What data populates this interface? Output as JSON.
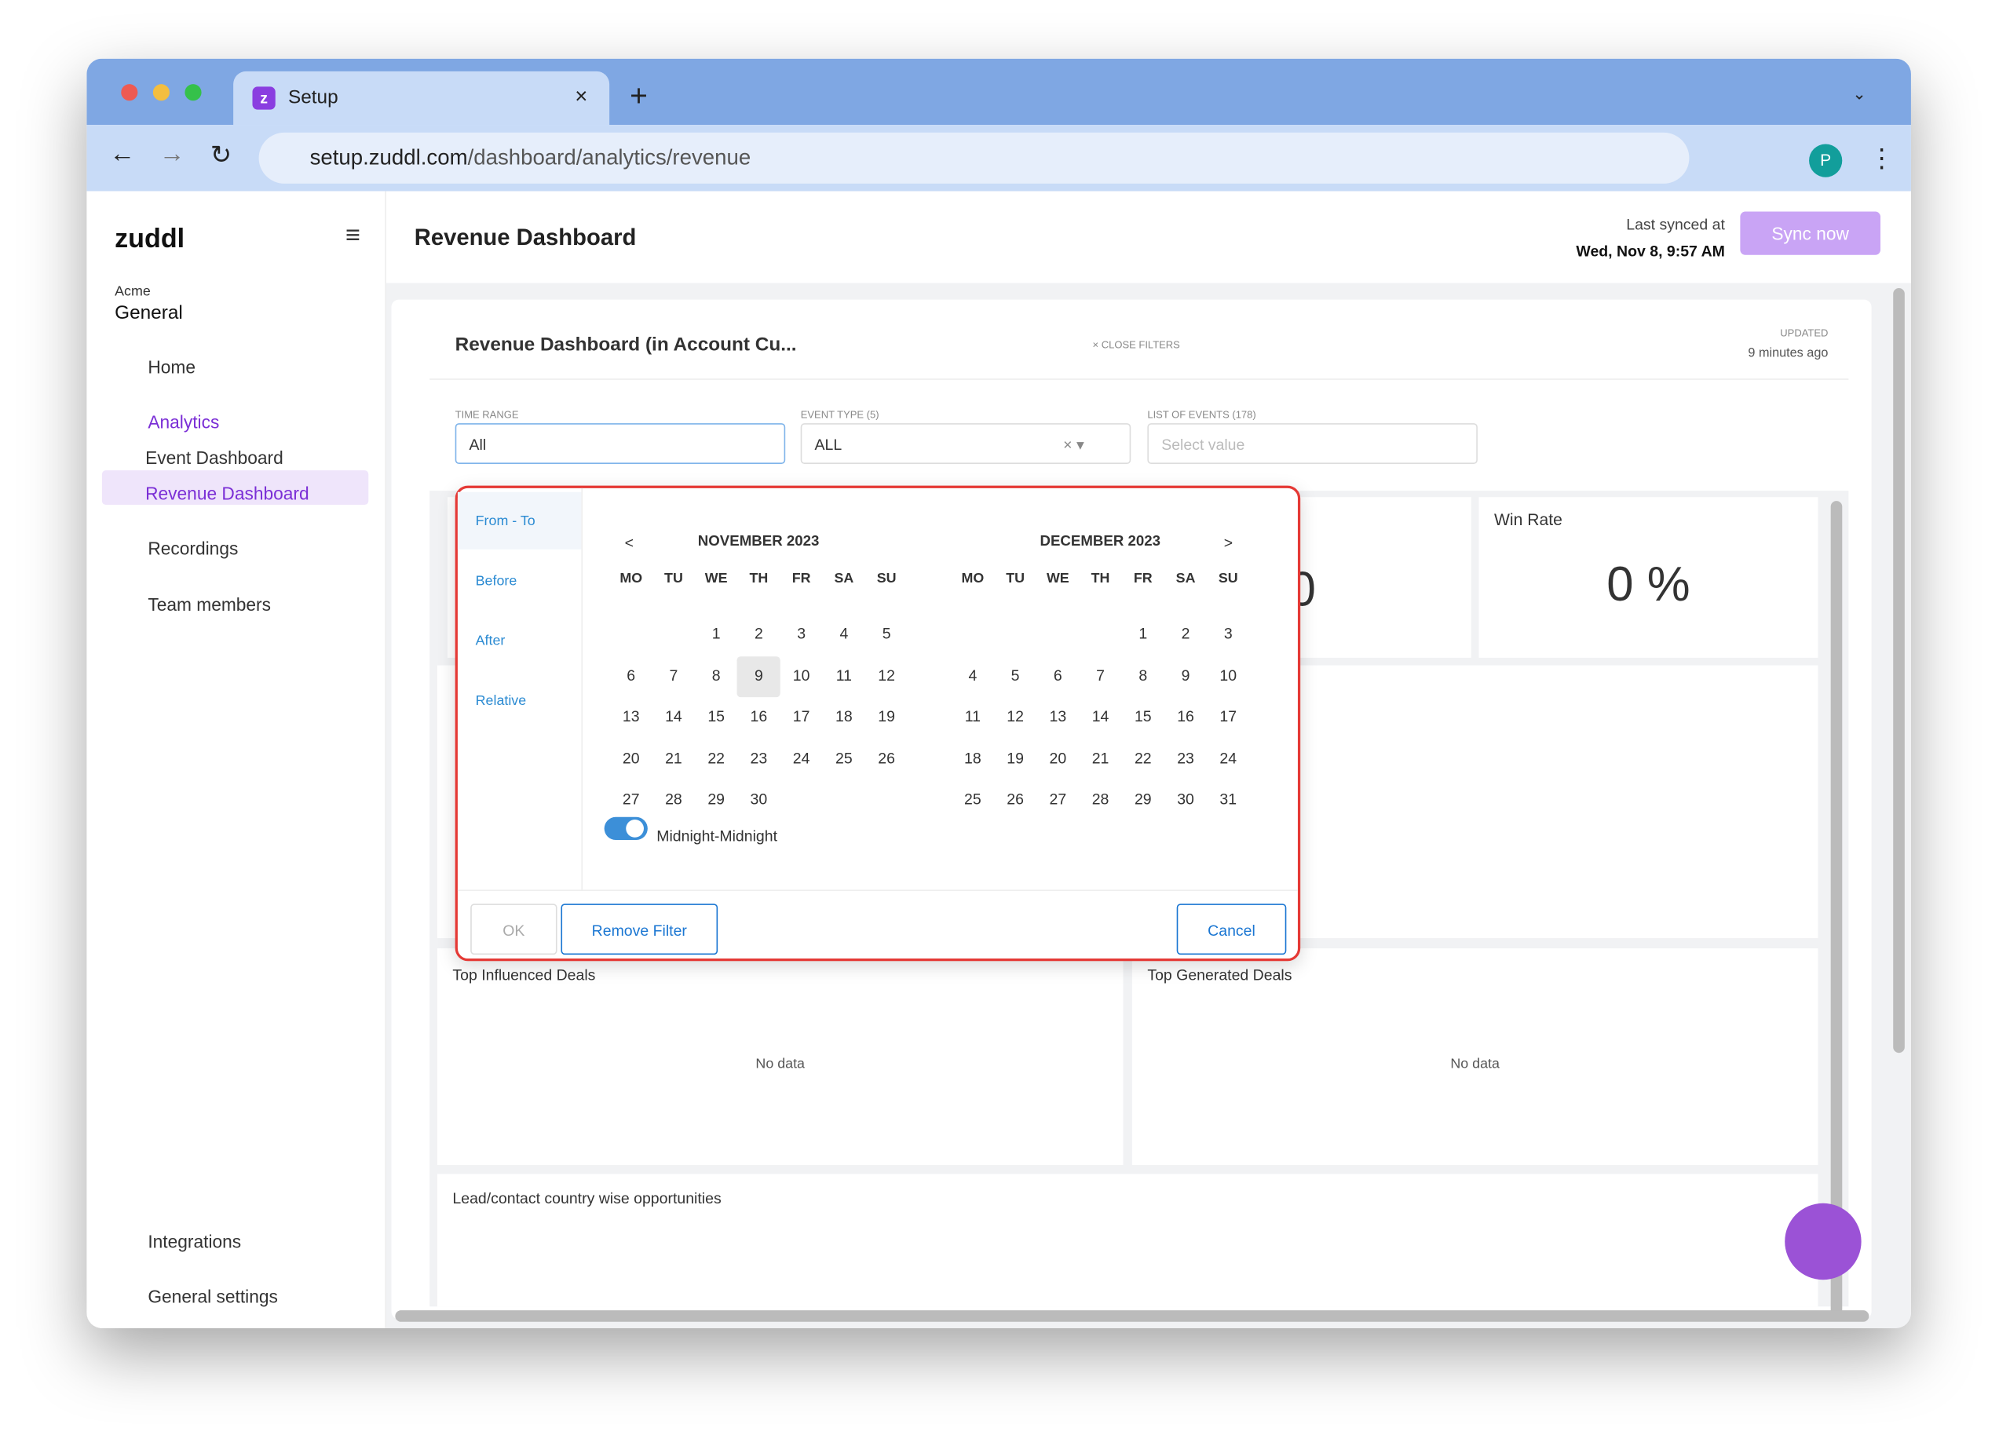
{
  "browser": {
    "tab_title": "Setup",
    "url_host": "setup.zuddl.com",
    "url_path": "/dashboard/analytics/revenue",
    "avatar": "P"
  },
  "sidebar": {
    "logo": "zuddl",
    "org_label": "Acme",
    "org_name": "General",
    "nav": [
      {
        "label": "Home"
      },
      {
        "label": "Analytics",
        "children": [
          "Event Dashboard",
          "Revenue Dashboard"
        ]
      },
      {
        "label": "Recordings"
      },
      {
        "label": "Team members"
      }
    ],
    "bottom": [
      "Integrations",
      "General settings"
    ]
  },
  "header": {
    "title": "Revenue Dashboard",
    "sync_label": "Last synced at",
    "sync_time": "Wed, Nov 8, 9:57 AM",
    "sync_button": "Sync now"
  },
  "panel": {
    "title": "Revenue Dashboard (in Account Cu...",
    "close_filters": "CLOSE FILTERS",
    "updated_label": "UPDATED",
    "updated_time": "9 minutes ago"
  },
  "filters": [
    {
      "label": "TIME RANGE",
      "value": "All"
    },
    {
      "label": "EVENT TYPE (5)",
      "value": "ALL"
    },
    {
      "label": "LIST OF EVENTS (178)",
      "placeholder": "Select value"
    }
  ],
  "cards": [
    {
      "title": "Win Rate",
      "value": "0 %"
    },
    {
      "title": "Top Influenced Deals",
      "empty": "No data"
    },
    {
      "title": "Top Generated Deals",
      "empty": "No data"
    },
    {
      "title": "Lead/contact country wise opportunities"
    }
  ],
  "picker": {
    "modes": [
      "From - To",
      "Before",
      "After",
      "Relative"
    ],
    "prev": "<",
    "next": ">",
    "weekdays": [
      "MO",
      "TU",
      "WE",
      "TH",
      "FR",
      "SA",
      "SU"
    ],
    "months": [
      {
        "title": "NOVEMBER 2023",
        "weeks": [
          [
            null,
            null,
            1,
            2,
            3,
            4,
            5
          ],
          [
            6,
            7,
            8,
            9,
            10,
            11,
            12
          ],
          [
            13,
            14,
            15,
            16,
            17,
            18,
            19
          ],
          [
            20,
            21,
            22,
            23,
            24,
            25,
            26
          ],
          [
            27,
            28,
            29,
            30,
            null,
            null,
            null
          ]
        ]
      },
      {
        "title": "DECEMBER 2023",
        "weeks": [
          [
            null,
            null,
            null,
            null,
            1,
            2,
            3
          ],
          [
            4,
            5,
            6,
            7,
            8,
            9,
            10
          ],
          [
            11,
            12,
            13,
            14,
            15,
            16,
            17
          ],
          [
            18,
            19,
            20,
            21,
            22,
            23,
            24
          ],
          [
            25,
            26,
            27,
            28,
            29,
            30,
            31
          ]
        ]
      }
    ],
    "toggle_label": "Midnight-Midnight",
    "ok": "OK",
    "remove": "Remove Filter",
    "cancel": "Cancel"
  }
}
